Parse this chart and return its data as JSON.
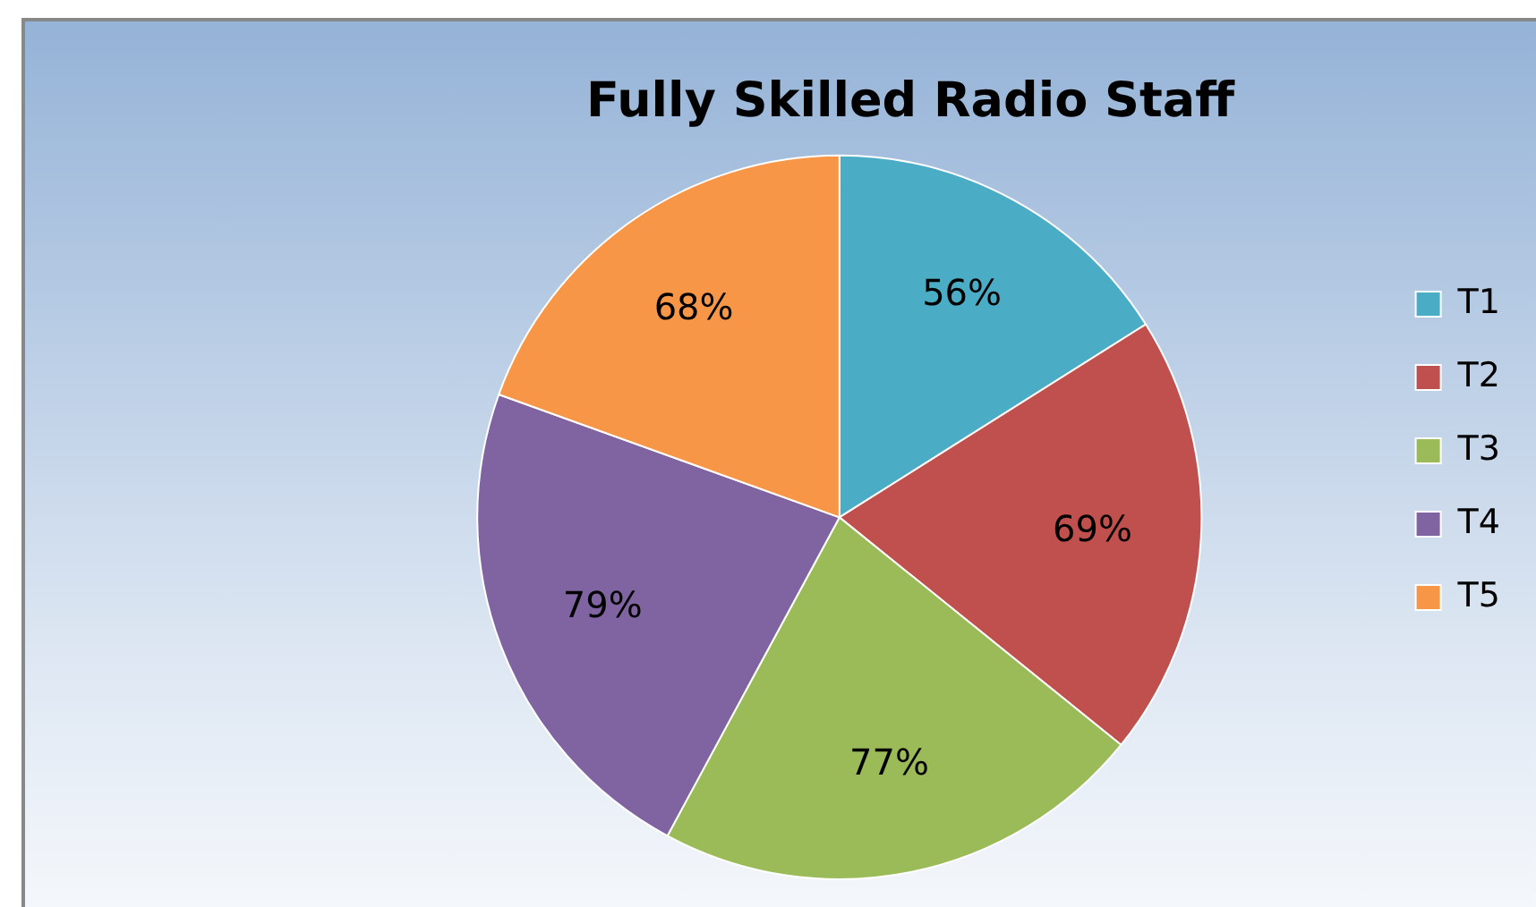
{
  "chart_data": {
    "type": "pie",
    "title": "Fully Skilled Radio Staff",
    "categories": [
      "T1",
      "T2",
      "T3",
      "T4",
      "T5"
    ],
    "values": [
      56,
      69,
      77,
      79,
      68
    ],
    "value_labels": [
      "56%",
      "69%",
      "77%",
      "79%",
      "68%"
    ],
    "colors": [
      "#4bacc6",
      "#c0504d",
      "#9bbb59",
      "#8064a2",
      "#f79646"
    ],
    "legend": "right"
  }
}
